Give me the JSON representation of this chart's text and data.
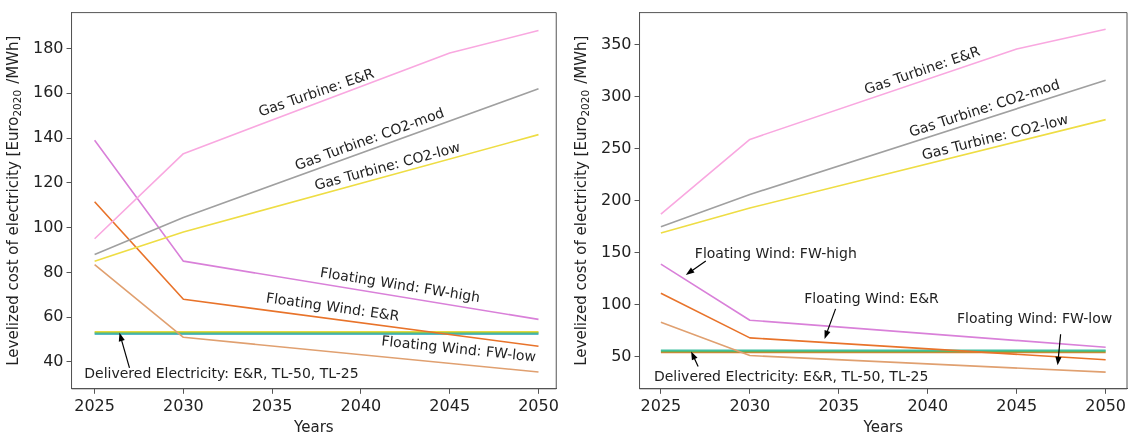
{
  "chart_data": [
    {
      "type": "line",
      "xlabel": "Years",
      "ylabel": "Levelized cost of electricity [Euro$_{2020}$/MWh]",
      "xlim": [
        2023.7,
        2051
      ],
      "ylim": [
        28,
        196
      ],
      "xticks": [
        2025,
        2030,
        2035,
        2040,
        2045,
        2050
      ],
      "yticks": [
        40,
        60,
        80,
        100,
        120,
        140,
        160,
        180
      ],
      "grid": false,
      "legend": false,
      "marker": "none",
      "line_style": "solid",
      "series": [
        {
          "color": "#f9a8e0",
          "x": [
            2025,
            2030,
            2045,
            2050
          ],
          "values": [
            95,
            133,
            178,
            188
          ]
        },
        {
          "color": "#a0a0a0",
          "x": [
            2025,
            2030,
            2050
          ],
          "values": [
            88,
            104.5,
            162
          ]
        },
        {
          "color": "#eedd44",
          "x": [
            2025,
            2030,
            2050
          ],
          "values": [
            85,
            98,
            141.5
          ]
        },
        {
          "color": "#d980d9",
          "x": [
            2025,
            2030,
            2050
          ],
          "values": [
            139,
            85,
            59
          ]
        },
        {
          "color": "#e8732a",
          "x": [
            2025,
            2030,
            2050
          ],
          "values": [
            111.5,
            68,
            47
          ]
        },
        {
          "color": "#e0a070",
          "x": [
            2025,
            2030,
            2050
          ],
          "values": [
            83.5,
            51,
            35.5
          ]
        },
        {
          "color": "#e6d83a",
          "x": [
            2025,
            2050
          ],
          "values": [
            53.5,
            53.5
          ]
        },
        {
          "color": "#3cb371",
          "x": [
            2025,
            2050
          ],
          "values": [
            53,
            53
          ]
        },
        {
          "color": "#1fa2b5",
          "x": [
            2025,
            2050
          ],
          "values": [
            52.5,
            52.5
          ]
        }
      ],
      "annotations": [
        {
          "text": "Gas Turbine: E&R",
          "x": 2037.5,
          "y": 155.5
        },
        {
          "text": "Gas Turbine: CO2-mod",
          "x": 2040.5,
          "y": 134.7
        },
        {
          "text": "Gas Turbine: CO2-low",
          "x": 2041.5,
          "y": 123
        },
        {
          "text": "Floating Wind: FW-high",
          "x": 2042.2,
          "y": 69.1
        },
        {
          "text": "Floating Wind: E&R",
          "x": 2038.4,
          "y": 59.2
        },
        {
          "text": "Floating Wind: FW-low",
          "x": 2045.5,
          "y": 41.4
        },
        {
          "text": "Delivered Electricity: E&R, TL-50, TL-25",
          "x": 2026.4,
          "y": 53
        }
      ]
    },
    {
      "type": "line",
      "xlabel": "Years",
      "ylabel": "Levelized cost of electricity [Euro$_{2020}$/MWh]",
      "xlim": [
        2023.8,
        2051.2
      ],
      "ylim": [
        19,
        381
      ],
      "xticks": [
        2025,
        2030,
        2035,
        2040,
        2045,
        2050
      ],
      "yticks": [
        50,
        100,
        150,
        200,
        250,
        300,
        350
      ],
      "grid": false,
      "legend": false,
      "marker": "none",
      "line_style": "solid",
      "series": [
        {
          "color": "#f9a8e0",
          "x": [
            2025,
            2030,
            2045,
            2050
          ],
          "values": [
            187,
            259,
            346,
            365
          ]
        },
        {
          "color": "#a0a0a0",
          "x": [
            2025,
            2030,
            2050
          ],
          "values": [
            175,
            206,
            316
          ]
        },
        {
          "color": "#eedd44",
          "x": [
            2025,
            2030,
            2050
          ],
          "values": [
            169,
            193,
            278
          ]
        },
        {
          "color": "#d980d9",
          "x": [
            2025,
            2030,
            2050
          ],
          "values": [
            139,
            85,
            59
          ]
        },
        {
          "color": "#e8732a",
          "x": [
            2025,
            2030,
            2050
          ],
          "values": [
            111,
            68,
            47
          ]
        },
        {
          "color": "#e0a070",
          "x": [
            2025,
            2030,
            2050
          ],
          "values": [
            83,
            51,
            35
          ]
        },
        {
          "color": "#40c0a0",
          "x": [
            2025,
            2050
          ],
          "values": [
            56,
            56
          ]
        },
        {
          "color": "#6ab04c",
          "x": [
            2025,
            2050
          ],
          "values": [
            55,
            55
          ]
        },
        {
          "color": "#e08030",
          "x": [
            2025,
            2050
          ],
          "values": [
            54,
            54
          ]
        }
      ],
      "annotations": [
        {
          "text": "Gas Turbine: E&R",
          "x": 2039.7,
          "y": 315
        },
        {
          "text": "Gas Turbine: CO2-mod",
          "x": 2043.2,
          "y": 278.6
        },
        {
          "text": "Gas Turbine: CO2-low",
          "x": 2043.8,
          "y": 251.7
        },
        {
          "text": "Floating Wind: FW-high",
          "x": 2026.4,
          "y": 128.6
        },
        {
          "text": "Floating Wind: E&R",
          "x": 2034.2,
          "y": 67
        },
        {
          "text": "Floating Wind: FW-low",
          "x": 2047.3,
          "y": 41.6
        },
        {
          "text": "Delivered Electricity: E&R, TL-50, TL-25",
          "x": 2026.7,
          "y": 55
        }
      ]
    }
  ]
}
